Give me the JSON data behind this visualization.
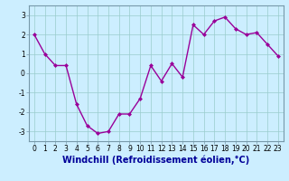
{
  "x": [
    0,
    1,
    2,
    3,
    4,
    5,
    6,
    7,
    8,
    9,
    10,
    11,
    12,
    13,
    14,
    15,
    16,
    17,
    18,
    19,
    20,
    21,
    22,
    23
  ],
  "y": [
    2.0,
    1.0,
    0.4,
    0.4,
    -1.6,
    -2.7,
    -3.1,
    -3.0,
    -2.1,
    -2.1,
    -1.3,
    0.4,
    -0.4,
    0.5,
    -0.2,
    2.5,
    2.0,
    2.7,
    2.9,
    2.3,
    2.0,
    2.1,
    1.5,
    0.9
  ],
  "line_color": "#990099",
  "marker": "D",
  "marker_size": 2.0,
  "bg_color": "#cceeff",
  "grid_color": "#99cccc",
  "xlabel": "Windchill (Refroidissement éolien,°C)",
  "xlabel_fontsize": 7,
  "xlabel_color": "#000099",
  "ylim": [
    -3.5,
    3.5
  ],
  "yticks": [
    -3,
    -2,
    -1,
    0,
    1,
    2,
    3
  ],
  "xticks": [
    0,
    1,
    2,
    3,
    4,
    5,
    6,
    7,
    8,
    9,
    10,
    11,
    12,
    13,
    14,
    15,
    16,
    17,
    18,
    19,
    20,
    21,
    22,
    23
  ],
  "tick_fontsize": 5.5,
  "line_width": 1.0,
  "spine_color": "#7799aa"
}
